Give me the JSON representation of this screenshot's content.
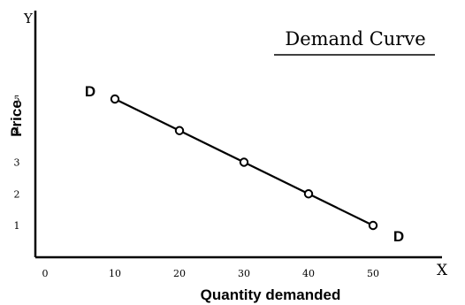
{
  "chart_data": {
    "type": "line",
    "title": "Demand Curve",
    "xlabel": "Quantity demanded",
    "ylabel": "Price",
    "x_axis_letter": "X",
    "y_axis_letter": "Y",
    "x_ticks": [
      "0",
      "10",
      "20",
      "30",
      "40",
      "50"
    ],
    "y_ticks": [
      "1",
      "2",
      "3",
      "4",
      "5"
    ],
    "xlim": [
      0,
      50
    ],
    "ylim": [
      0,
      5
    ],
    "curve_labels": [
      "D",
      "D"
    ],
    "series": [
      {
        "x": [
          10,
          20,
          30,
          40,
          50
        ],
        "y": [
          5,
          4,
          3,
          2,
          1
        ]
      }
    ],
    "grid": false,
    "colors": {
      "line": "#000000",
      "marker_fill": "#ffffff",
      "background": "#ffffff"
    }
  }
}
